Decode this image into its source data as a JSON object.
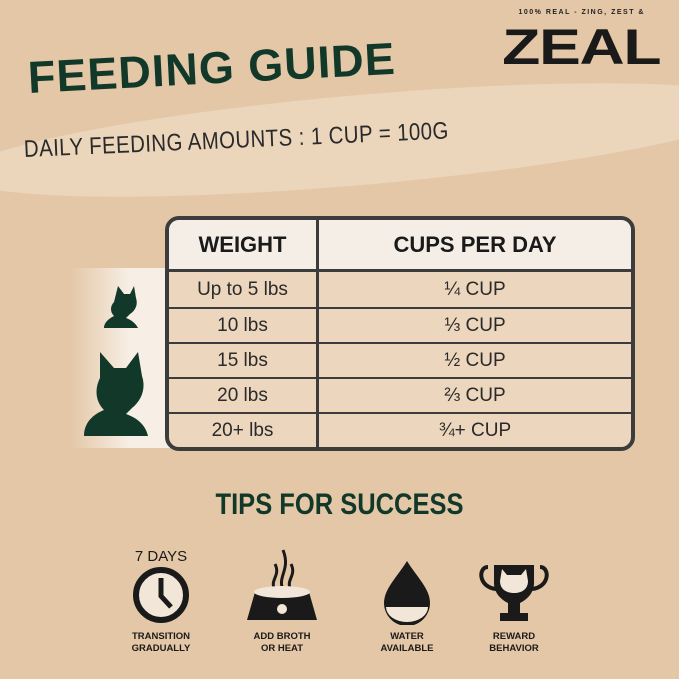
{
  "brand": {
    "tagline": "100% REAL - ZING, ZEST &",
    "logo": "ZEAL"
  },
  "title": "FEEDING GUIDE",
  "subtitle": "DAILY FEEDING AMOUNTS : 1 CUP = 100G",
  "table": {
    "headers": [
      "WEIGHT",
      "CUPS PER DAY"
    ],
    "rows": [
      [
        "Up to 5 lbs",
        "¼ CUP"
      ],
      [
        "10 lbs",
        "⅓ CUP"
      ],
      [
        "15 lbs",
        "½ CUP"
      ],
      [
        "20 lbs",
        "⅔ CUP"
      ],
      [
        "20+ lbs",
        "¾+ CUP"
      ]
    ]
  },
  "tips": {
    "heading": "TIPS FOR SUCCESS",
    "badge": "7 DAYS",
    "items": [
      {
        "icon": "clock-icon",
        "line1": "TRANSITION",
        "line2": "GRADUALLY"
      },
      {
        "icon": "bowl-icon",
        "line1": "ADD BROTH",
        "line2": "OR HEAT"
      },
      {
        "icon": "water-drop-icon",
        "line1": "WATER",
        "line2": "AVAILABLE"
      },
      {
        "icon": "trophy-icon",
        "line1": "REWARD",
        "line2": "BEHAVIOR"
      }
    ]
  },
  "colors": {
    "green": "#12382a",
    "background": "#e4c7a6"
  }
}
